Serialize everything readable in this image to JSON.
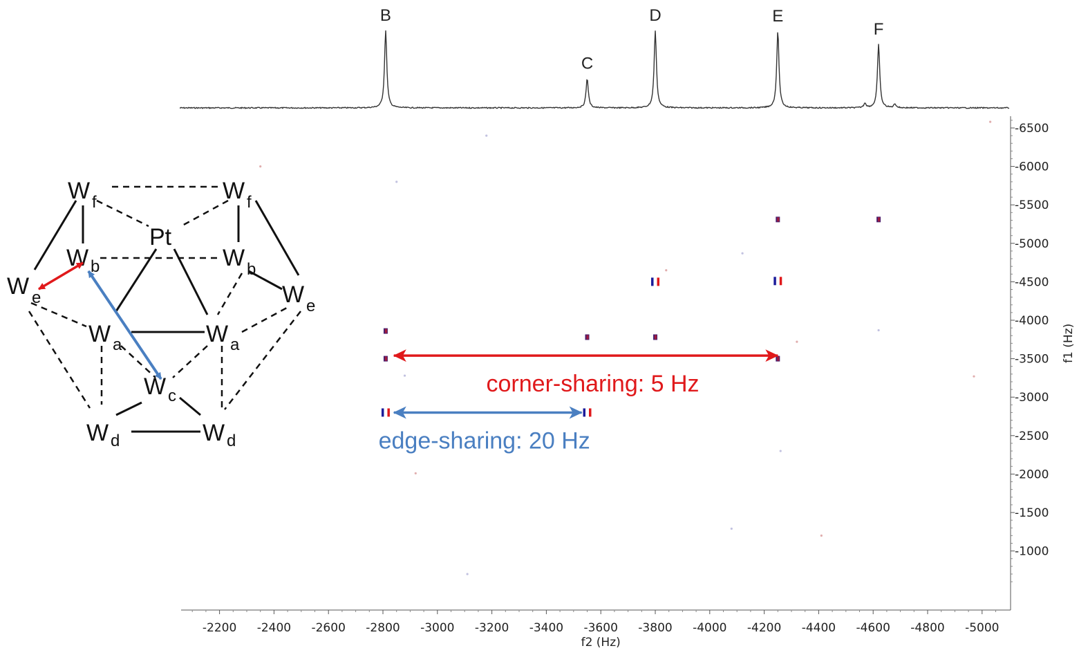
{
  "chart_data": {
    "type": "scatter",
    "title": "",
    "xlabel": "f2 (Hz)",
    "ylabel": "f1 (Hz)",
    "xlim": [
      -2050,
      -5080
    ],
    "ylim": [
      450,
      6680
    ],
    "x_ticks": [
      -2200,
      -2400,
      -2600,
      -2800,
      -3000,
      -3200,
      -3400,
      -3600,
      -3800,
      -4000,
      -4200,
      -4400,
      -4600,
      -4800,
      -5000
    ],
    "y_ticks": [
      1000,
      1500,
      2000,
      2500,
      3000,
      3500,
      4000,
      4500,
      5000,
      5500,
      6000,
      6500
    ],
    "x_tick_labels": [
      "-2200",
      "-2400",
      "-2600",
      "-2800",
      "-3000",
      "-3200",
      "-3400",
      "-3600",
      "-3800",
      "-4000",
      "-4200",
      "-4400",
      "-4600",
      "-4800",
      "-5000"
    ],
    "y_tick_labels": [
      "-1000",
      "-1500",
      "-2000",
      "-2500",
      "-3000",
      "-3500",
      "-4000",
      "-4500",
      "-5000",
      "-5500",
      "-6000",
      "-6500"
    ],
    "spectrum_1d": {
      "baseline": 0.0,
      "peaks": [
        {
          "label": "B",
          "x": -2810,
          "height": 1.0
        },
        {
          "label": "C",
          "x": -3550,
          "height": 0.38
        },
        {
          "label": "D",
          "x": -3800,
          "height": 1.0
        },
        {
          "label": "E",
          "x": -4250,
          "height": 0.99
        },
        {
          "label": "F",
          "x": -4620,
          "height": 0.82
        }
      ],
      "minor_peaks": [
        {
          "x": -4570,
          "height": 0.06
        },
        {
          "x": -4680,
          "height": 0.05
        }
      ]
    },
    "cross_peaks": [
      {
        "x": -2810,
        "y": 3860,
        "kind": "single"
      },
      {
        "x": -2810,
        "y": 3500,
        "kind": "single"
      },
      {
        "x": -2810,
        "y": 2800,
        "kind": "doublet"
      },
      {
        "x": -3550,
        "y": 3780,
        "kind": "single"
      },
      {
        "x": -3550,
        "y": 2800,
        "kind": "doublet"
      },
      {
        "x": -3800,
        "y": 4500,
        "kind": "doublet"
      },
      {
        "x": -3800,
        "y": 3780,
        "kind": "single"
      },
      {
        "x": -4250,
        "y": 5310,
        "kind": "single"
      },
      {
        "x": -4250,
        "y": 4510,
        "kind": "doublet"
      },
      {
        "x": -4250,
        "y": 3500,
        "kind": "single"
      },
      {
        "x": -4620,
        "y": 5310,
        "kind": "single"
      }
    ],
    "noise_spots": [
      {
        "x": -3180,
        "y": 6400
      },
      {
        "x": -2350,
        "y": 6000
      },
      {
        "x": -2850,
        "y": 5800
      },
      {
        "x": -5030,
        "y": 6580
      },
      {
        "x": -4120,
        "y": 4870
      },
      {
        "x": -3840,
        "y": 4650
      },
      {
        "x": -4620,
        "y": 3870
      },
      {
        "x": -4320,
        "y": 3720
      },
      {
        "x": -2880,
        "y": 3280
      },
      {
        "x": -4970,
        "y": 3270
      },
      {
        "x": -4260,
        "y": 2300
      },
      {
        "x": -2920,
        "y": 2010
      },
      {
        "x": -4080,
        "y": 1290
      },
      {
        "x": -4410,
        "y": 1200
      },
      {
        "x": -3110,
        "y": 700
      }
    ],
    "annotations": [
      {
        "text": "corner-sharing: 5 Hz",
        "color": "#e0191b",
        "x_from": -2840,
        "x_to": -4250,
        "y": 3540
      },
      {
        "text": "edge-sharing: 20 Hz",
        "color": "#4a7fc1",
        "x_from": -2840,
        "x_to": -3530,
        "y": 2800
      }
    ],
    "colors": {
      "positive": "#e0191b",
      "negative": "#1c1c9a",
      "spectrum": "#333333"
    }
  },
  "structure": {
    "nodes": [
      {
        "main": "W",
        "sub": "f"
      },
      {
        "main": "W",
        "sub": "f"
      },
      {
        "main": "Pt",
        "sub": ""
      },
      {
        "main": "W",
        "sub": "b"
      },
      {
        "main": "W",
        "sub": "b"
      },
      {
        "main": "W",
        "sub": "e"
      },
      {
        "main": "W",
        "sub": "e"
      },
      {
        "main": "W",
        "sub": "a"
      },
      {
        "main": "W",
        "sub": "a"
      },
      {
        "main": "W",
        "sub": "c"
      },
      {
        "main": "W",
        "sub": "d"
      },
      {
        "main": "W",
        "sub": "d"
      }
    ],
    "arrow_colors": {
      "red": "#e0191b",
      "blue": "#4a7fc1"
    }
  }
}
